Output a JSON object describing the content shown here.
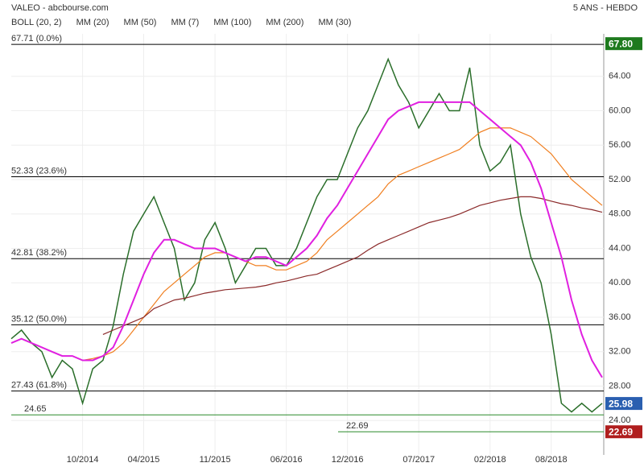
{
  "chart_data": {
    "type": "line",
    "title": "VALEO - abcbourse.com",
    "subtitle": "5 ANS - HEBDO",
    "legend": [
      {
        "name": "BOLL (20, 2)",
        "color": "#555555"
      },
      {
        "name": "MM (20)",
        "color": "#3a6fd8"
      },
      {
        "name": "MM (50)",
        "color": "#d03030"
      },
      {
        "name": "MM (7)",
        "color": "#2a9a2a"
      },
      {
        "name": "MM (100)",
        "color": "#f07f20"
      },
      {
        "name": "MM (200)",
        "color": "#8b2a2a"
      },
      {
        "name": "MM (30)",
        "color": "#e020e0"
      }
    ],
    "categories": [
      null,
      null,
      null,
      null,
      null,
      null,
      null,
      null,
      null,
      null,
      null,
      null,
      null,
      null,
      null,
      null,
      null,
      null,
      null,
      null,
      null,
      null,
      null,
      null,
      null,
      null,
      null,
      null,
      null,
      null,
      null,
      null,
      null,
      null,
      null,
      null,
      null,
      null,
      null,
      null,
      null,
      null,
      null,
      null,
      null,
      null,
      null,
      null,
      null,
      null,
      null,
      null,
      null,
      null,
      null,
      null,
      null,
      null,
      null
    ],
    "series": [
      {
        "color": "#2a6e2a",
        "values": [
          33.5,
          34.5,
          33,
          32,
          29,
          31,
          30,
          26,
          30,
          31,
          35,
          41,
          46,
          48,
          50,
          47,
          44,
          38,
          40,
          45,
          47,
          44,
          40,
          42,
          44,
          44,
          42,
          42,
          44,
          47,
          50,
          52,
          52,
          55,
          58,
          60,
          63,
          66,
          63,
          61,
          58,
          60,
          62,
          60,
          60,
          65,
          56,
          53,
          54,
          56,
          48,
          43,
          40,
          34,
          26,
          25,
          26,
          25,
          26
        ]
      },
      {
        "color": "#f07f20",
        "values": [
          null,
          null,
          null,
          null,
          null,
          null,
          null,
          31,
          31.2,
          31.5,
          32,
          33,
          34.5,
          36,
          37.5,
          39,
          40,
          41,
          42,
          43,
          43.5,
          43.5,
          43,
          42.5,
          42,
          42,
          41.5,
          41.5,
          42,
          42.5,
          43.5,
          45,
          46,
          47,
          48,
          49,
          50,
          51.5,
          52.5,
          53,
          53.5,
          54,
          54.5,
          55,
          55.5,
          56.5,
          57.5,
          58,
          58,
          58,
          57.5,
          57,
          56,
          55,
          53.5,
          52,
          51,
          50,
          49
        ]
      },
      {
        "color": "#8b2a2a",
        "values": [
          null,
          null,
          null,
          null,
          null,
          null,
          null,
          null,
          null,
          34,
          34.5,
          35,
          35.5,
          36,
          37,
          37.5,
          38,
          38.2,
          38.5,
          38.8,
          39,
          39.2,
          39.3,
          39.4,
          39.5,
          39.7,
          40,
          40.2,
          40.5,
          40.8,
          41,
          41.5,
          42,
          42.5,
          43,
          43.8,
          44.5,
          45,
          45.5,
          46,
          46.5,
          47,
          47.3,
          47.6,
          48,
          48.5,
          49,
          49.3,
          49.6,
          49.8,
          50,
          50,
          49.8,
          49.5,
          49.2,
          49,
          48.7,
          48.5,
          48.2
        ]
      },
      {
        "color": "#e020e0",
        "values": [
          33,
          33.5,
          33,
          32.5,
          32,
          31.5,
          31.5,
          31,
          31,
          31.5,
          32.5,
          35,
          38,
          41,
          43.5,
          45,
          45,
          44.5,
          44,
          44,
          44,
          43.5,
          43,
          42.5,
          43,
          43,
          42.5,
          42,
          43,
          44,
          45.5,
          47.5,
          49,
          51,
          53,
          55,
          57,
          59,
          60,
          60.5,
          61,
          61,
          61,
          61,
          61,
          61,
          60,
          59,
          58,
          57,
          56,
          54,
          51,
          47,
          43,
          38,
          34,
          31,
          29
        ]
      }
    ],
    "xticks": [
      {
        "value": 7,
        "label": "10/2014"
      },
      {
        "value": 13,
        "label": "04/2015"
      },
      {
        "value": 20,
        "label": "11/2015"
      },
      {
        "value": 27,
        "label": "06/2016"
      },
      {
        "value": 33,
        "label": "12/2016"
      },
      {
        "value": 40,
        "label": "07/2017"
      },
      {
        "value": 47,
        "label": "02/2018"
      },
      {
        "value": 53,
        "label": "08/2018"
      }
    ],
    "ylim": [
      20,
      71
    ],
    "yticks": [
      {
        "value": 24,
        "label": "24.00"
      },
      {
        "value": 28,
        "label": "28.00"
      },
      {
        "value": 32,
        "label": "32.00"
      },
      {
        "value": 36,
        "label": "36.00"
      },
      {
        "value": 40,
        "label": "40.00"
      },
      {
        "value": 44,
        "label": "44.00"
      },
      {
        "value": 48,
        "label": "48.00"
      },
      {
        "value": 52,
        "label": "52.00"
      },
      {
        "value": 56,
        "label": "56.00"
      },
      {
        "value": 60,
        "label": "60.00"
      },
      {
        "value": 64,
        "label": "64.00"
      }
    ],
    "grid": true,
    "levels": [
      {
        "value": 67.71,
        "label": "67.71 (0.0%)",
        "color": "#000000"
      },
      {
        "value": 52.33,
        "label": "52.33 (23.6%)",
        "color": "#000000"
      },
      {
        "value": 42.81,
        "label": "42.81 (38.2%)",
        "color": "#000000"
      },
      {
        "value": 35.12,
        "label": "35.12 (50.0%)",
        "color": "#000000"
      },
      {
        "value": 27.43,
        "label": "27.43 (61.8%)",
        "color": "#000000"
      },
      {
        "value": 24.65,
        "label": "24.65",
        "color": "#2a8a2a"
      },
      {
        "value": 22.69,
        "label": "22.69",
        "color": "#2a8a2a"
      }
    ],
    "price_markers": [
      {
        "value": 67.8,
        "label": "67.80",
        "color": "#1e7a1e"
      },
      {
        "value": 25.98,
        "label": "25.98",
        "color": "#2a5fb0"
      },
      {
        "value": 22.69,
        "label": "22.69",
        "color": "#b01e1e"
      }
    ]
  }
}
